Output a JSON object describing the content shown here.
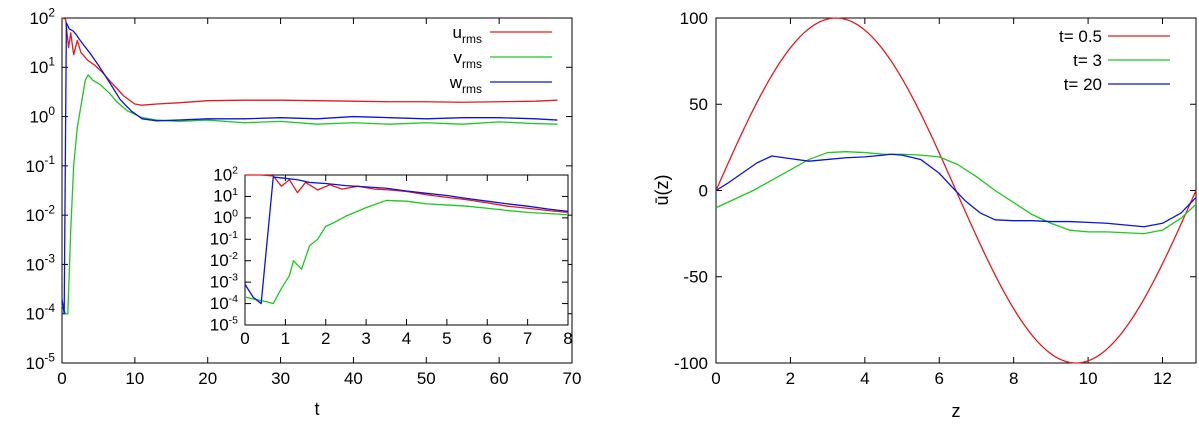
{
  "chart_data": [
    {
      "type": "line",
      "id": "left",
      "xlabel": "t",
      "ylabel": "",
      "xlim": [
        0,
        70
      ],
      "ylim": [
        1e-05,
        100
      ],
      "yscale": "log",
      "xticks": [
        "0",
        "10",
        "20",
        "30",
        "40",
        "50",
        "60",
        "70"
      ],
      "yticks": [
        {
          "base": "10",
          "exp": "-5"
        },
        {
          "base": "10",
          "exp": "-4"
        },
        {
          "base": "10",
          "exp": "-3"
        },
        {
          "base": "10",
          "exp": "-2"
        },
        {
          "base": "10",
          "exp": "-1"
        },
        {
          "base": "10",
          "exp": "0"
        },
        {
          "base": "10",
          "exp": "1"
        },
        {
          "base": "10",
          "exp": "2"
        }
      ],
      "grid": false,
      "legend_position": "top-right",
      "series": [
        {
          "name": "u",
          "sub": "rms",
          "color": "#e41a1c",
          "points": [
            [
              0,
              100
            ],
            [
              0.5,
              95
            ],
            [
              0.9,
              25
            ],
            [
              1.2,
              50
            ],
            [
              1.6,
              18
            ],
            [
              2.1,
              35
            ],
            [
              2.6,
              20
            ],
            [
              3.5,
              14
            ],
            [
              4.5,
              11
            ],
            [
              5.5,
              8
            ],
            [
              7,
              4.5
            ],
            [
              8.5,
              2.6
            ],
            [
              10,
              1.8
            ],
            [
              11,
              1.7
            ],
            [
              13,
              1.8
            ],
            [
              16,
              1.9
            ],
            [
              20,
              2.1
            ],
            [
              25,
              2.15
            ],
            [
              30,
              2.15
            ],
            [
              35,
              2.1
            ],
            [
              40,
              2.05
            ],
            [
              45,
              2.0
            ],
            [
              50,
              2.0
            ],
            [
              55,
              1.95
            ],
            [
              60,
              2.0
            ],
            [
              65,
              2.05
            ],
            [
              68,
              2.15
            ]
          ]
        },
        {
          "name": "v",
          "sub": "rms",
          "color": "#1ec81e",
          "points": [
            [
              0,
              0.00015
            ],
            [
              0.5,
              0.0001
            ],
            [
              0.8,
              0.0001
            ],
            [
              1.2,
              0.005
            ],
            [
              1.6,
              0.1
            ],
            [
              2.1,
              0.6
            ],
            [
              2.7,
              2
            ],
            [
              3.2,
              5.5
            ],
            [
              3.6,
              7
            ],
            [
              4.2,
              5.5
            ],
            [
              5.2,
              4.5
            ],
            [
              6.5,
              3.0
            ],
            [
              7.5,
              2.0
            ],
            [
              9,
              1.3
            ],
            [
              11,
              0.95
            ],
            [
              13,
              0.85
            ],
            [
              16,
              0.8
            ],
            [
              20,
              0.85
            ],
            [
              25,
              0.75
            ],
            [
              30,
              0.8
            ],
            [
              35,
              0.7
            ],
            [
              40,
              0.75
            ],
            [
              45,
              0.7
            ],
            [
              50,
              0.75
            ],
            [
              55,
              0.7
            ],
            [
              60,
              0.78
            ],
            [
              65,
              0.72
            ],
            [
              68,
              0.7
            ]
          ]
        },
        {
          "name": "w",
          "sub": "rms",
          "color": "#0a14dc",
          "points": [
            [
              0,
              0.0002
            ],
            [
              0.3,
              0.0001
            ],
            [
              0.6,
              80
            ],
            [
              1.0,
              60
            ],
            [
              1.5,
              55
            ],
            [
              2.0,
              45
            ],
            [
              2.5,
              35
            ],
            [
              3.0,
              28
            ],
            [
              4.0,
              18
            ],
            [
              5.0,
              11
            ],
            [
              6.5,
              5
            ],
            [
              8,
              2.2
            ],
            [
              9.5,
              1.3
            ],
            [
              11,
              0.9
            ],
            [
              13,
              0.82
            ],
            [
              16,
              0.85
            ],
            [
              20,
              0.9
            ],
            [
              25,
              0.9
            ],
            [
              30,
              0.95
            ],
            [
              35,
              0.9
            ],
            [
              40,
              1.0
            ],
            [
              45,
              0.95
            ],
            [
              50,
              0.9
            ],
            [
              55,
              0.95
            ],
            [
              60,
              0.95
            ],
            [
              65,
              0.9
            ],
            [
              68,
              0.85
            ]
          ]
        }
      ]
    },
    {
      "type": "line",
      "id": "inset",
      "xlabel": "",
      "ylabel": "",
      "xlim": [
        0,
        8
      ],
      "ylim": [
        1e-05,
        100
      ],
      "yscale": "log",
      "xticks": [
        "0",
        "1",
        "2",
        "3",
        "4",
        "5",
        "6",
        "7",
        "8"
      ],
      "yticks": [
        {
          "base": "10",
          "exp": "-5"
        },
        {
          "base": "10",
          "exp": "-4"
        },
        {
          "base": "10",
          "exp": "-3"
        },
        {
          "base": "10",
          "exp": "-2"
        },
        {
          "base": "10",
          "exp": "-1"
        },
        {
          "base": "10",
          "exp": "0"
        },
        {
          "base": "10",
          "exp": "1"
        },
        {
          "base": "10",
          "exp": "2"
        }
      ],
      "grid": false,
      "series": [
        {
          "color": "#e41a1c",
          "points": [
            [
              0,
              100
            ],
            [
              0.4,
              100
            ],
            [
              0.7,
              90
            ],
            [
              0.9,
              30
            ],
            [
              1.1,
              60
            ],
            [
              1.3,
              15
            ],
            [
              1.5,
              45
            ],
            [
              1.8,
              20
            ],
            [
              2.1,
              35
            ],
            [
              2.4,
              22
            ],
            [
              2.8,
              30
            ],
            [
              3.2,
              22
            ],
            [
              3.6,
              20
            ],
            [
              4.0,
              17
            ],
            [
              4.5,
              12
            ],
            [
              5.0,
              9
            ],
            [
              5.5,
              7
            ],
            [
              6.0,
              5
            ],
            [
              6.5,
              3.5
            ],
            [
              7.0,
              2.8
            ],
            [
              7.5,
              2.2
            ],
            [
              8,
              1.8
            ]
          ]
        },
        {
          "color": "#1ec81e",
          "points": [
            [
              0,
              0.0002
            ],
            [
              0.3,
              0.00015
            ],
            [
              0.55,
              0.00012
            ],
            [
              0.7,
              0.0001
            ],
            [
              0.9,
              0.0005
            ],
            [
              1.1,
              0.002
            ],
            [
              1.2,
              0.01
            ],
            [
              1.4,
              0.004
            ],
            [
              1.6,
              0.05
            ],
            [
              1.8,
              0.1
            ],
            [
              2.0,
              0.4
            ],
            [
              2.2,
              0.6
            ],
            [
              2.5,
              1.2
            ],
            [
              3.0,
              3.0
            ],
            [
              3.5,
              6.5
            ],
            [
              4.0,
              6.0
            ],
            [
              4.5,
              4.5
            ],
            [
              5.0,
              4.0
            ],
            [
              5.5,
              3.5
            ],
            [
              6.0,
              2.8
            ],
            [
              6.5,
              2.2
            ],
            [
              7.0,
              1.8
            ],
            [
              7.5,
              1.6
            ],
            [
              8,
              1.4
            ]
          ]
        },
        {
          "color": "#0a14dc",
          "points": [
            [
              0,
              0.0008
            ],
            [
              0.2,
              0.0002
            ],
            [
              0.4,
              0.0001
            ],
            [
              0.7,
              80
            ],
            [
              1.0,
              70
            ],
            [
              1.3,
              60
            ],
            [
              1.6,
              45
            ],
            [
              2.0,
              40
            ],
            [
              2.5,
              32
            ],
            [
              3.0,
              28
            ],
            [
              3.5,
              24
            ],
            [
              4.0,
              18
            ],
            [
              4.5,
              14
            ],
            [
              5.0,
              11
            ],
            [
              5.5,
              8
            ],
            [
              6.0,
              6
            ],
            [
              6.5,
              4.5
            ],
            [
              7.0,
              3.5
            ],
            [
              7.5,
              2.6
            ],
            [
              8,
              2.0
            ]
          ]
        }
      ]
    },
    {
      "type": "line",
      "id": "right",
      "xlabel": "z",
      "ylabel": "ū(z)",
      "xlim": [
        0,
        12.9
      ],
      "ylim": [
        -100,
        100
      ],
      "yscale": "linear",
      "xticks": [
        "0",
        "2",
        "4",
        "6",
        "8",
        "10",
        "12"
      ],
      "yticks": [
        "-100",
        "-50",
        "0",
        "50",
        "100"
      ],
      "grid": false,
      "legend_position": "top-right",
      "series": [
        {
          "name": "t= 0.5",
          "color": "#e41a1c",
          "fn": "sine",
          "amplitude": 100,
          "period": 12.9
        },
        {
          "name": "t= 3",
          "color": "#1ec81e",
          "points": [
            [
              0,
              -10
            ],
            [
              0.5,
              -5
            ],
            [
              1,
              0
            ],
            [
              1.5,
              6
            ],
            [
              2,
              12
            ],
            [
              2.5,
              18
            ],
            [
              3,
              22
            ],
            [
              3.5,
              22.5
            ],
            [
              4,
              22
            ],
            [
              4.5,
              21
            ],
            [
              5,
              21
            ],
            [
              5.5,
              20.5
            ],
            [
              6,
              19.5
            ],
            [
              6.5,
              15
            ],
            [
              7,
              8
            ],
            [
              7.5,
              0
            ],
            [
              8,
              -7
            ],
            [
              8.5,
              -14
            ],
            [
              9,
              -19
            ],
            [
              9.5,
              -23
            ],
            [
              10,
              -24
            ],
            [
              10.5,
              -24
            ],
            [
              11,
              -24.5
            ],
            [
              11.5,
              -25
            ],
            [
              12,
              -23
            ],
            [
              12.5,
              -16
            ],
            [
              12.9,
              -8
            ]
          ]
        },
        {
          "name": "t= 20",
          "color": "#0a14dc",
          "points": [
            [
              0,
              0
            ],
            [
              0.3,
              4
            ],
            [
              0.7,
              10
            ],
            [
              1.1,
              16
            ],
            [
              1.5,
              20
            ],
            [
              2,
              18.5
            ],
            [
              2.5,
              17
            ],
            [
              3,
              18
            ],
            [
              3.5,
              19
            ],
            [
              4,
              19.5
            ],
            [
              4.5,
              20.5
            ],
            [
              4.7,
              21
            ],
            [
              5,
              20.5
            ],
            [
              5.5,
              18
            ],
            [
              6,
              10
            ],
            [
              6.3,
              3
            ],
            [
              6.7,
              -6
            ],
            [
              7.1,
              -13
            ],
            [
              7.5,
              -17
            ],
            [
              8,
              -17.5
            ],
            [
              8.5,
              -17.5
            ],
            [
              9,
              -18
            ],
            [
              9.5,
              -18
            ],
            [
              10,
              -18.5
            ],
            [
              10.5,
              -19
            ],
            [
              11,
              -20
            ],
            [
              11.5,
              -21
            ],
            [
              12,
              -19
            ],
            [
              12.5,
              -13
            ],
            [
              12.9,
              -4
            ]
          ]
        }
      ]
    }
  ]
}
